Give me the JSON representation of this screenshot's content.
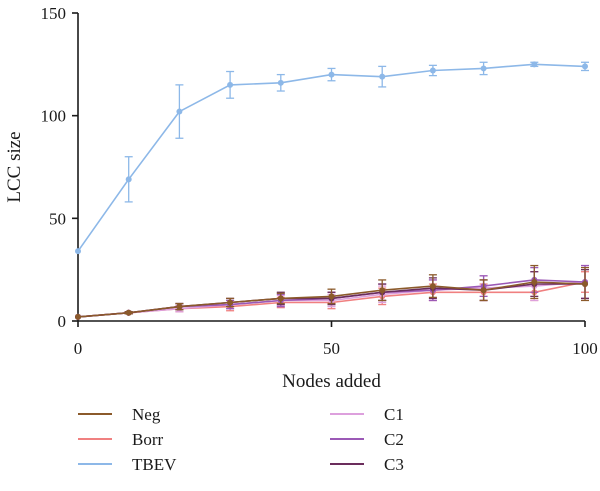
{
  "chart_data": {
    "type": "line",
    "xlabel": "Nodes added",
    "ylabel": "LCC size",
    "xlim": [
      0,
      100
    ],
    "ylim": [
      0,
      150
    ],
    "xticks": [
      "0",
      "50",
      "100"
    ],
    "yticks": [
      "0",
      "50",
      "100",
      "150"
    ],
    "grid": false,
    "legend_placement": "bottom, two columns",
    "x": [
      0,
      10,
      20,
      30,
      40,
      50,
      60,
      70,
      80,
      90,
      100
    ],
    "series": [
      {
        "name": "Neg",
        "color": "#8B5A2B",
        "values": [
          2,
          4,
          7,
          9,
          11,
          12,
          15,
          17,
          15,
          19,
          18
        ],
        "errors": [
          0,
          0.5,
          1.5,
          2,
          2.5,
          3.5,
          5,
          5.5,
          5,
          8,
          8
        ]
      },
      {
        "name": "Borr",
        "color": "#F08080",
        "values": [
          2,
          4,
          6,
          7,
          9,
          9,
          12,
          14,
          14,
          14,
          19
        ],
        "errors": [
          0,
          0.5,
          1.5,
          2,
          2.5,
          3,
          4,
          4,
          4,
          4,
          5
        ]
      },
      {
        "name": "TBEV",
        "color": "#8DB8E8",
        "values": [
          34,
          69,
          102,
          115,
          116,
          120,
          119,
          122,
          123,
          125,
          124
        ],
        "errors": [
          0,
          11,
          13,
          6.5,
          4,
          3,
          5,
          2.5,
          3,
          1,
          2
        ]
      },
      {
        "name": "C1",
        "color": "#DDA0DD",
        "values": [
          2,
          4,
          6,
          8,
          10,
          10,
          13,
          15,
          16,
          17,
          19
        ],
        "errors": [
          0,
          0.5,
          1.5,
          2,
          2.5,
          3,
          4,
          5,
          6,
          7,
          8
        ]
      },
      {
        "name": "C2",
        "color": "#9B59B6",
        "values": [
          2,
          4,
          7,
          8,
          10,
          11,
          14,
          15,
          17,
          20,
          19
        ],
        "errors": [
          0,
          0.5,
          1.5,
          2,
          3,
          3,
          4,
          5,
          5,
          6,
          8
        ]
      },
      {
        "name": "C3",
        "color": "#6B2D5C",
        "values": [
          2,
          4,
          7,
          9,
          11,
          11,
          14,
          16,
          15,
          18,
          18
        ],
        "errors": [
          0,
          0.5,
          1.5,
          2,
          3,
          3,
          4,
          5,
          5,
          6,
          7
        ]
      }
    ]
  }
}
